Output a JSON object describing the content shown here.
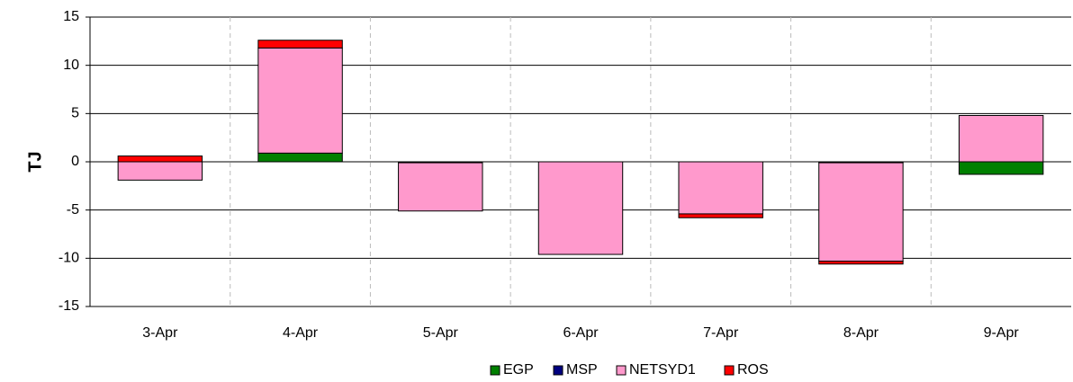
{
  "chart_data": {
    "type": "stacked_bar",
    "y_label": "TJ",
    "categories": [
      "3-Apr",
      "4-Apr",
      "5-Apr",
      "6-Apr",
      "7-Apr",
      "8-Apr",
      "9-Apr"
    ],
    "series": [
      {
        "name": "EGP",
        "color": "#008000",
        "values": [
          0,
          0.9,
          -0.1,
          0,
          0,
          -0.1,
          -1.3
        ]
      },
      {
        "name": "MSP",
        "color": "#000080",
        "values": [
          0,
          0,
          0,
          0,
          0,
          0,
          0
        ]
      },
      {
        "name": "NETSYD1",
        "color": "#ff99cc",
        "values": [
          -1.9,
          10.9,
          -5.0,
          -9.6,
          -5.4,
          -10.2,
          4.8
        ]
      },
      {
        "name": "ROS",
        "color": "#ff0000",
        "values": [
          0.6,
          0.8,
          0,
          0,
          -0.4,
          -0.3,
          0
        ]
      }
    ],
    "ylim": [
      -15,
      15
    ],
    "yticks": [
      -15,
      -10,
      -5,
      0,
      5,
      10,
      15
    ],
    "grid": true
  }
}
